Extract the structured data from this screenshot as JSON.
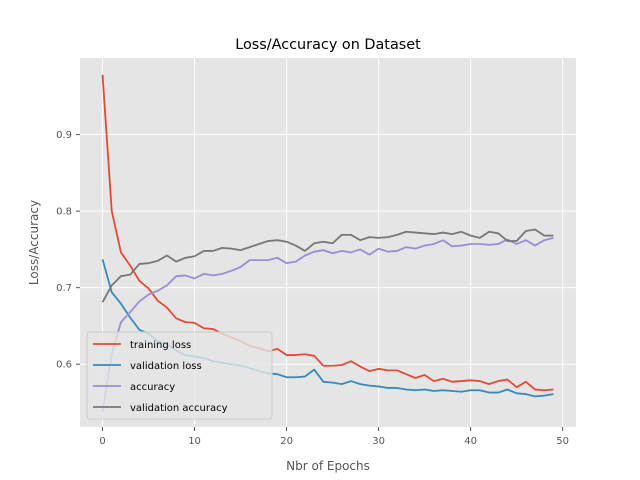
{
  "chart_data": {
    "type": "line",
    "title": "Loss/Accuracy on Dataset",
    "xlabel": "Nbr of Epochs",
    "ylabel": "Loss/Accuracy",
    "xlim": [
      -2.45,
      51.45
    ],
    "ylim": [
      0.518,
      1.0
    ],
    "x_ticks": [
      0,
      10,
      20,
      30,
      40,
      50
    ],
    "y_ticks": [
      0.6,
      0.7,
      0.8,
      0.9
    ],
    "y_tick_labels": [
      "0.6",
      "0.7",
      "0.8",
      "0.9"
    ],
    "grid": true,
    "legend_position": "lower-left",
    "x": [
      0,
      1,
      2,
      3,
      4,
      5,
      6,
      7,
      8,
      9,
      10,
      11,
      12,
      13,
      14,
      15,
      16,
      17,
      18,
      19,
      20,
      21,
      22,
      23,
      24,
      25,
      26,
      27,
      28,
      29,
      30,
      31,
      32,
      33,
      34,
      35,
      36,
      37,
      38,
      39,
      40,
      41,
      42,
      43,
      44,
      45,
      46,
      47,
      48,
      49
    ],
    "series": [
      {
        "name": "training loss",
        "color": "#E24A33",
        "values": [
          0.978,
          0.8,
          0.746,
          0.729,
          0.709,
          0.699,
          0.683,
          0.674,
          0.66,
          0.655,
          0.654,
          0.647,
          0.646,
          0.64,
          0.635,
          0.63,
          0.624,
          0.621,
          0.617,
          0.62,
          0.612,
          0.612,
          0.613,
          0.611,
          0.598,
          0.598,
          0.599,
          0.604,
          0.597,
          0.591,
          0.594,
          0.592,
          0.592,
          0.587,
          0.582,
          0.586,
          0.578,
          0.581,
          0.577,
          0.578,
          0.579,
          0.578,
          0.574,
          0.578,
          0.58,
          0.57,
          0.577,
          0.567,
          0.566,
          0.567
        ]
      },
      {
        "name": "validation loss",
        "color": "#348ABD",
        "values": [
          0.737,
          0.694,
          0.679,
          0.661,
          0.645,
          0.64,
          0.63,
          0.626,
          0.618,
          0.612,
          0.61,
          0.608,
          0.604,
          0.602,
          0.6,
          0.598,
          0.595,
          0.591,
          0.588,
          0.587,
          0.583,
          0.583,
          0.584,
          0.593,
          0.577,
          0.576,
          0.574,
          0.578,
          0.574,
          0.572,
          0.571,
          0.569,
          0.569,
          0.567,
          0.566,
          0.567,
          0.565,
          0.566,
          0.565,
          0.564,
          0.566,
          0.566,
          0.563,
          0.563,
          0.567,
          0.562,
          0.561,
          0.558,
          0.559,
          0.561
        ]
      },
      {
        "name": "accuracy",
        "color": "#988ED5",
        "values": [
          0.538,
          0.614,
          0.655,
          0.668,
          0.682,
          0.691,
          0.696,
          0.703,
          0.715,
          0.716,
          0.712,
          0.718,
          0.716,
          0.718,
          0.722,
          0.727,
          0.736,
          0.736,
          0.736,
          0.739,
          0.732,
          0.734,
          0.742,
          0.747,
          0.749,
          0.745,
          0.748,
          0.746,
          0.75,
          0.743,
          0.751,
          0.747,
          0.748,
          0.753,
          0.751,
          0.755,
          0.757,
          0.762,
          0.754,
          0.755,
          0.757,
          0.757,
          0.756,
          0.757,
          0.763,
          0.757,
          0.762,
          0.755,
          0.762,
          0.765
        ]
      },
      {
        "name": "validation accuracy",
        "color": "#777777",
        "values": [
          0.681,
          0.703,
          0.715,
          0.717,
          0.731,
          0.732,
          0.735,
          0.742,
          0.734,
          0.739,
          0.741,
          0.748,
          0.748,
          0.752,
          0.751,
          0.749,
          0.753,
          0.757,
          0.761,
          0.762,
          0.76,
          0.755,
          0.748,
          0.758,
          0.76,
          0.758,
          0.769,
          0.769,
          0.762,
          0.766,
          0.765,
          0.766,
          0.769,
          0.773,
          0.772,
          0.771,
          0.77,
          0.772,
          0.77,
          0.773,
          0.768,
          0.765,
          0.773,
          0.771,
          0.761,
          0.761,
          0.774,
          0.776,
          0.768,
          0.768
        ]
      }
    ]
  }
}
